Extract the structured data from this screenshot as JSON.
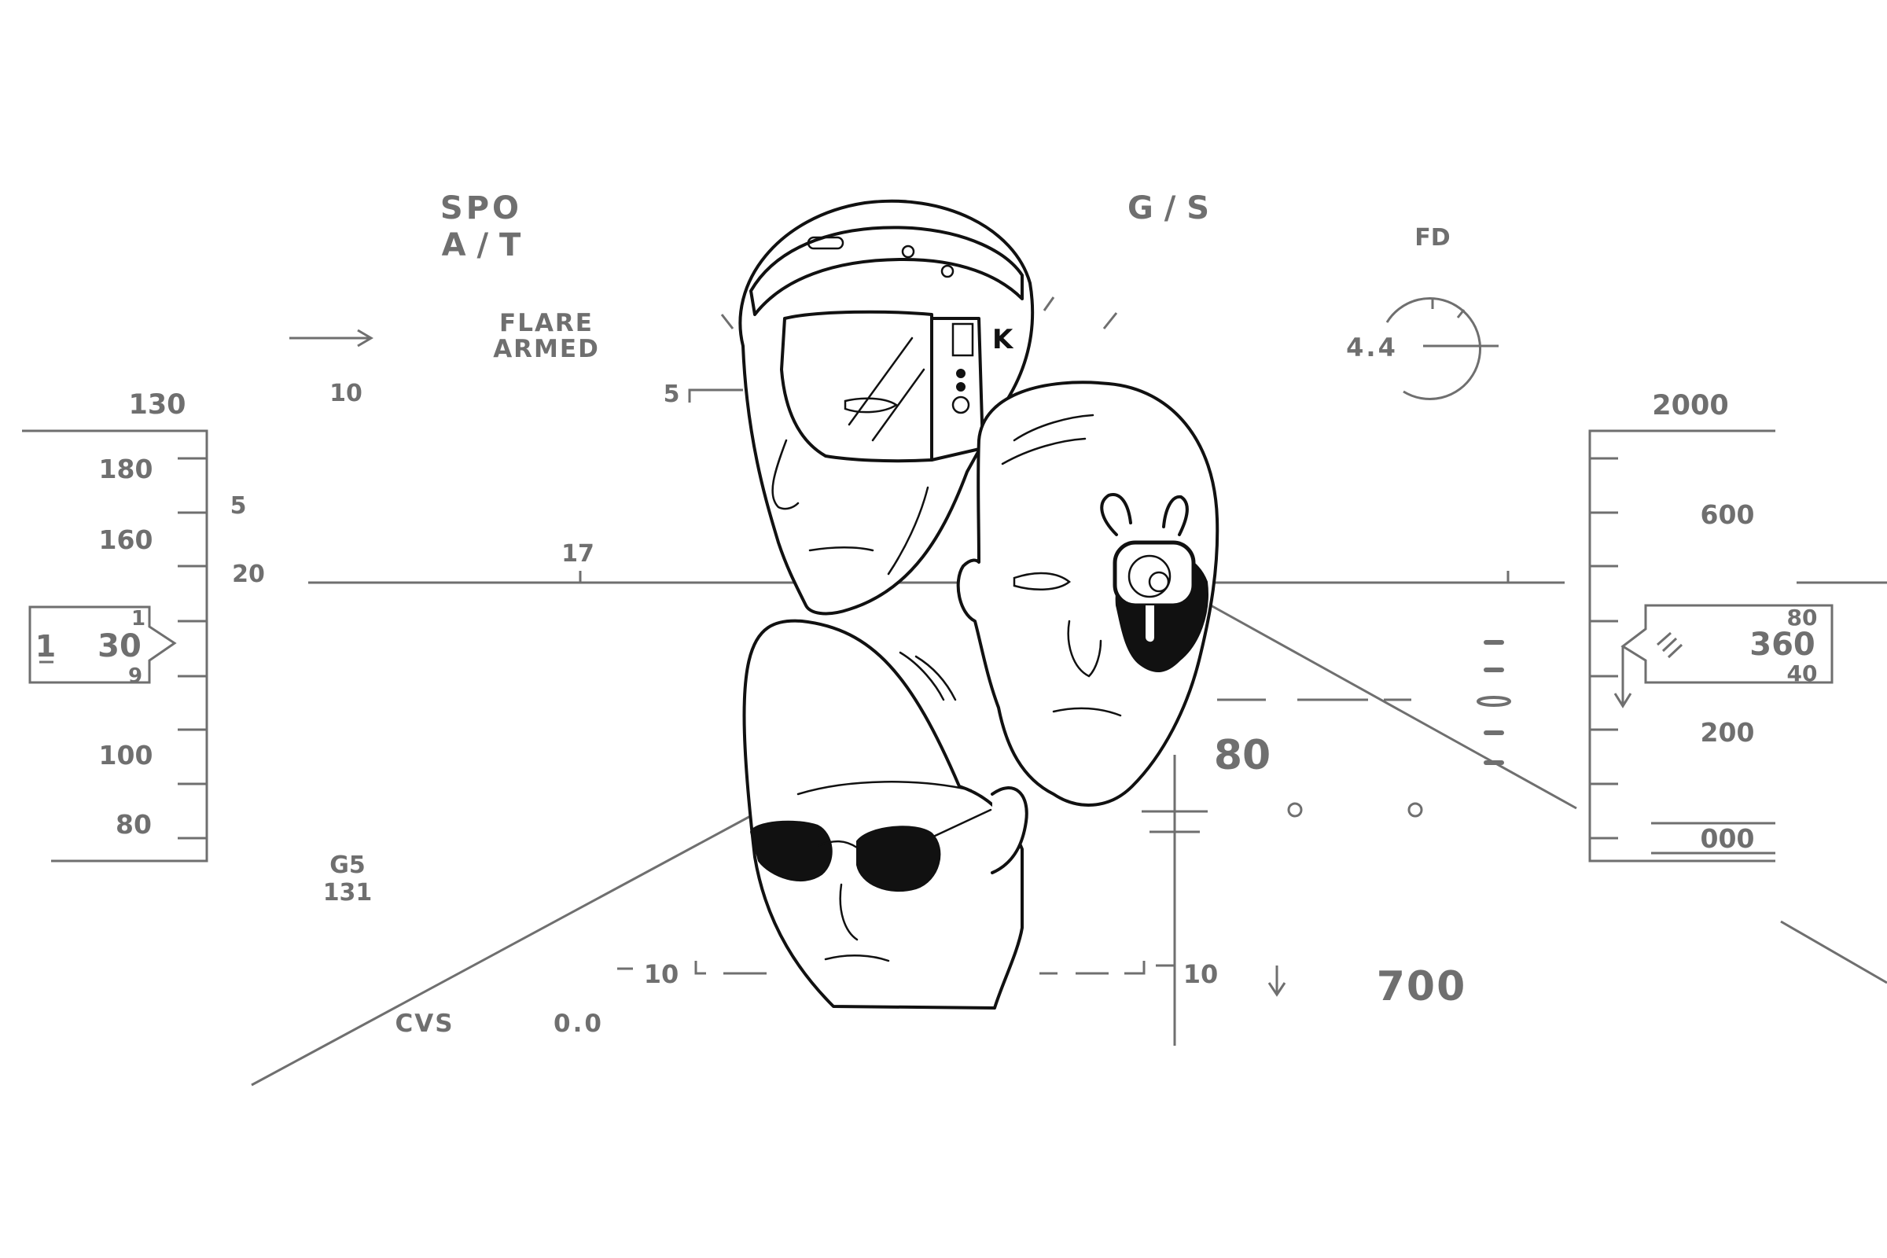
{
  "hud": {
    "mode_spo": "SPO",
    "mode_at": "A / T",
    "mode_gs": "G / S",
    "fd": "FD",
    "flare_line1": "FLARE",
    "flare_line2": "ARMED",
    "pitch_left_10": "10",
    "pitch_5": "5",
    "pitch_17": "17",
    "pitch_neg10_left": "10",
    "pitch_neg10_right": "10",
    "g_value": "4.4",
    "speed_top": "130",
    "speed_ticks": [
      "180",
      "160",
      "100",
      "80"
    ],
    "speed_side_5": "5",
    "speed_side_20": "20",
    "speed_box_left": "1",
    "speed_box_value": "30",
    "speed_box_top": "1",
    "speed_box_bottom": "9",
    "gs_label": "G5",
    "gs_value": "131",
    "cvs_label": "CVS",
    "cvs_value": "0.0",
    "alt_top": "2000",
    "alt_ticks": [
      "600",
      "200",
      "000"
    ],
    "alt_box_value": "360",
    "alt_box_top": "80",
    "alt_box_bottom": "40",
    "vs_value": "80",
    "bottom_value": "700"
  },
  "illustration": {
    "faces": [
      "helmet-visor-face",
      "cyborg-eyepiece-face",
      "sunglasses-face"
    ],
    "visor_letter": "K"
  },
  "colors": {
    "hud_gray": "#6f6f6f",
    "ink_black": "#111111",
    "background": "#ffffff"
  }
}
